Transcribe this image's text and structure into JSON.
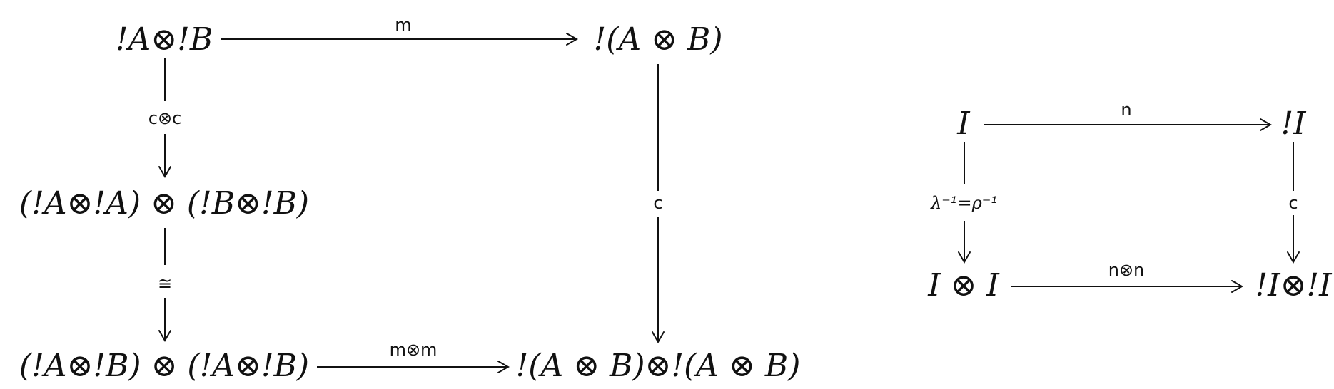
{
  "diagrams": [
    {
      "nodes": {
        "tl": "!A⊗!B",
        "tr": "!(A ⊗ B)",
        "ml": "(!A⊗!A) ⊗ (!B⊗!B)",
        "bl": "(!A⊗!B) ⊗ (!A⊗!B)",
        "br": "!(A ⊗ B)⊗!(A ⊗ B)"
      },
      "arrows": {
        "top": "m",
        "left_upper": "c⊗c",
        "left_lower": "≅",
        "right": "c",
        "bottom": "m⊗m"
      }
    },
    {
      "nodes": {
        "tl": "I",
        "tr": "!I",
        "bl": "I ⊗ I",
        "br": "!I⊗!I"
      },
      "arrows": {
        "top": "n",
        "left": "λ⁻¹=ρ⁻¹",
        "right": "c",
        "bottom": "n⊗n"
      }
    }
  ]
}
